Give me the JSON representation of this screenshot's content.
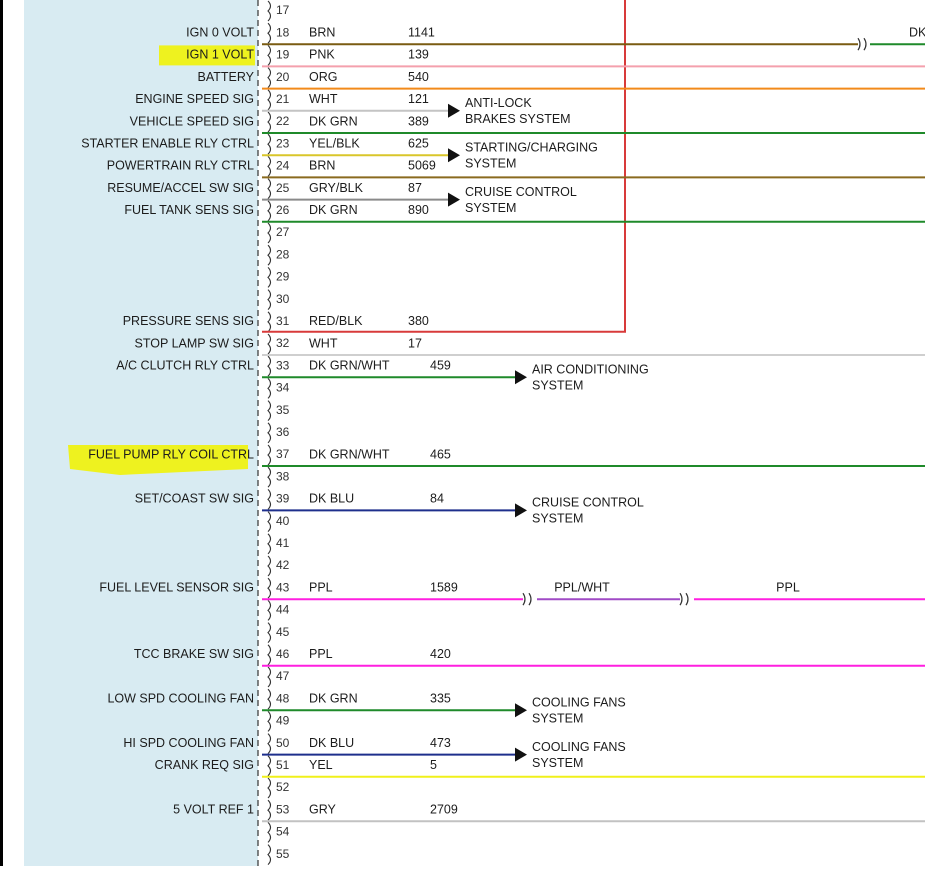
{
  "colors": {
    "panel": "#d8ebf2",
    "highlight": "#eef21f",
    "frame": "#000000",
    "relay_line": "#d83a3a"
  },
  "pins": [
    {
      "num": "17"
    },
    {
      "num": "18",
      "signal": "IGN 0 VOLT",
      "color_name": "BRN",
      "circuit": "1141",
      "wire": "#7a5c12",
      "line": "full",
      "splice_label": "DK"
    },
    {
      "num": "19",
      "signal": "",
      "color_name": "PNK",
      "circuit": "139",
      "wire": "#f4a0ad",
      "line": "full"
    },
    {
      "num": "20",
      "signal": "BATTERY",
      "color_name": "ORG",
      "circuit": "540",
      "wire": "#f28a1a",
      "line": "full"
    },
    {
      "num": "21",
      "signal": "ENGINE SPEED SIG",
      "color_name": "WHT",
      "circuit": "121",
      "wire": "#c4c4c4",
      "line": "short"
    },
    {
      "num": "22",
      "signal": "VEHICLE SPEED SIG",
      "color_name": "DK GRN",
      "circuit": "389",
      "wire": "#1f8a2a",
      "line": "full"
    },
    {
      "num": "23",
      "signal": "STARTER ENABLE RLY CTRL",
      "color_name": "YEL/BLK",
      "circuit": "625",
      "wire": "#d9c62a",
      "line": "short"
    },
    {
      "num": "24",
      "signal": "POWERTRAIN RLY CTRL",
      "color_name": "BRN",
      "circuit": "5069",
      "wire": "#8a6a1f",
      "line": "full"
    },
    {
      "num": "25",
      "signal": "RESUME/ACCEL SW SIG",
      "color_name": "GRY/BLK",
      "circuit": "87",
      "wire": "#8a8a8a",
      "line": "short"
    },
    {
      "num": "26",
      "signal": "FUEL TANK SENS SIG",
      "color_name": "DK GRN",
      "circuit": "890",
      "wire": "#1f8a2a",
      "line": "full"
    },
    {
      "num": "27"
    },
    {
      "num": "28"
    },
    {
      "num": "29"
    },
    {
      "num": "30"
    },
    {
      "num": "31",
      "signal": "PRESSURE SENS SIG",
      "color_name": "RED/BLK",
      "circuit": "380",
      "wire": "#d83a3a",
      "line": "relay"
    },
    {
      "num": "32",
      "signal": "STOP LAMP SW SIG",
      "color_name": "WHT",
      "circuit": "17",
      "wire": "#cfcfcf",
      "line": "full"
    },
    {
      "num": "33",
      "signal": "A/C CLUTCH RLY CTRL",
      "color_name": "DK GRN/WHT",
      "circuit": "459",
      "wire": "#1f8a2a",
      "line": "arrow"
    },
    {
      "num": "34"
    },
    {
      "num": "35"
    },
    {
      "num": "36"
    },
    {
      "num": "37",
      "signal": "",
      "color_name": "DK GRN/WHT",
      "circuit": "465",
      "wire": "#1f8a2a",
      "line": "full"
    },
    {
      "num": "38"
    },
    {
      "num": "39",
      "signal": "SET/COAST SW SIG",
      "color_name": "DK BLU",
      "circuit": "84",
      "wire": "#1e2f8c",
      "line": "arrow"
    },
    {
      "num": "40"
    },
    {
      "num": "41"
    },
    {
      "num": "42"
    },
    {
      "num": "43",
      "signal": "FUEL LEVEL SENSOR SIG",
      "color_name": "PPL",
      "circuit": "1589",
      "wire": "#ff1fe0",
      "line": "purple"
    },
    {
      "num": "44"
    },
    {
      "num": "45"
    },
    {
      "num": "46",
      "signal": "TCC BRAKE SW SIG",
      "color_name": "PPL",
      "circuit": "420",
      "wire": "#ff1fe0",
      "line": "full"
    },
    {
      "num": "47"
    },
    {
      "num": "48",
      "signal": "LOW SPD COOLING FAN",
      "color_name": "DK GRN",
      "circuit": "335",
      "wire": "#1f8a2a",
      "line": "arrow"
    },
    {
      "num": "49"
    },
    {
      "num": "50",
      "signal": "HI SPD COOLING FAN",
      "color_name": "DK BLU",
      "circuit": "473",
      "wire": "#1e2f8c",
      "line": "arrow"
    },
    {
      "num": "51",
      "signal": "CRANK REQ SIG",
      "color_name": "YEL",
      "circuit": "5",
      "wire": "#f0f01a",
      "line": "full"
    },
    {
      "num": "52"
    },
    {
      "num": "53",
      "signal": "5 VOLT REF 1",
      "color_name": "GRY",
      "circuit": "2709",
      "wire": "#c2c2c2",
      "line": "full"
    },
    {
      "num": "54"
    },
    {
      "num": "55"
    }
  ],
  "highlighted_labels": [
    {
      "text": "IGN 1 VOLT",
      "pin": "19"
    },
    {
      "text": "FUEL PUMP RLY COIL CTRL",
      "pin": "37"
    }
  ],
  "destinations": [
    {
      "lines": [
        "ANTI-LOCK",
        "BRAKES SYSTEM"
      ],
      "pins": [
        "21",
        "22"
      ]
    },
    {
      "lines": [
        "STARTING/CHARGING",
        "SYSTEM"
      ],
      "pins": [
        "23",
        "24"
      ]
    },
    {
      "lines": [
        "CRUISE CONTROL",
        "SYSTEM"
      ],
      "pins": [
        "25",
        "26"
      ]
    },
    {
      "lines": [
        "AIR CONDITIONING",
        "SYSTEM"
      ],
      "pins": [
        "33",
        "34"
      ]
    },
    {
      "lines": [
        "CRUISE CONTROL",
        "SYSTEM"
      ],
      "pins": [
        "39",
        "40"
      ]
    },
    {
      "lines": [
        "COOLING FANS",
        "SYSTEM"
      ],
      "pins": [
        "48",
        "49"
      ]
    },
    {
      "lines": [
        "COOLING FANS",
        "SYSTEM"
      ],
      "pins": [
        "50",
        "51"
      ]
    }
  ],
  "splices": [
    {
      "pin": "43",
      "labels": [
        "PPL/WHT",
        "PPL"
      ]
    }
  ]
}
